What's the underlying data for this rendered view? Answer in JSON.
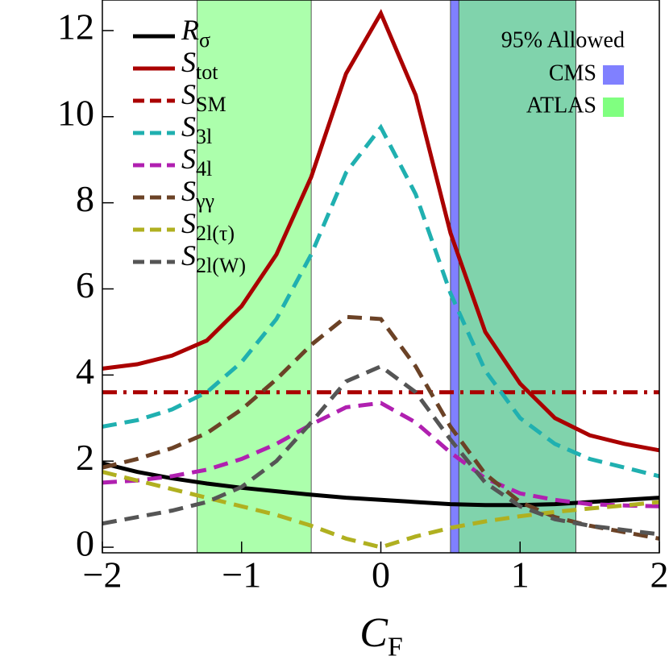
{
  "chart_data": {
    "type": "line",
    "xlabel": "CF",
    "x": [
      -2,
      -1.75,
      -1.5,
      -1.25,
      -1,
      -0.75,
      -0.5,
      -0.25,
      0,
      0.25,
      0.5,
      0.75,
      1,
      1.25,
      1.5,
      1.75,
      2
    ],
    "series": [
      {
        "name": "Rσ",
        "color": "#000000",
        "dash": "solid",
        "values": [
          1.95,
          1.75,
          1.6,
          1.48,
          1.38,
          1.3,
          1.22,
          1.15,
          1.1,
          1.05,
          1.0,
          0.98,
          0.98,
          1.0,
          1.05,
          1.1,
          1.15
        ]
      },
      {
        "name": "Stot",
        "color": "#aa0000",
        "dash": "solid",
        "values": [
          4.15,
          4.25,
          4.45,
          4.8,
          5.6,
          6.8,
          8.6,
          11.0,
          12.4,
          10.5,
          7.3,
          5.0,
          3.8,
          3.0,
          2.6,
          2.4,
          2.25
        ]
      },
      {
        "name": "SSM",
        "color": "#aa0000",
        "dash": "dashdot",
        "values": [
          3.6,
          3.6,
          3.6,
          3.6,
          3.6,
          3.6,
          3.6,
          3.6,
          3.6,
          3.6,
          3.6,
          3.6,
          3.6,
          3.6,
          3.6,
          3.6,
          3.6
        ]
      },
      {
        "name": "S3l",
        "color": "#20b0b0",
        "dash": "dashed",
        "values": [
          2.8,
          2.95,
          3.2,
          3.6,
          4.3,
          5.3,
          6.8,
          8.7,
          9.75,
          8.2,
          5.9,
          4.1,
          3.0,
          2.4,
          2.05,
          1.85,
          1.65
        ]
      },
      {
        "name": "S4l",
        "color": "#b020b0",
        "dash": "dashed",
        "values": [
          1.5,
          1.55,
          1.65,
          1.8,
          2.05,
          2.4,
          2.85,
          3.25,
          3.35,
          2.9,
          2.2,
          1.6,
          1.25,
          1.1,
          1.0,
          0.97,
          0.95
        ]
      },
      {
        "name": "Sγγ",
        "color": "#6b4226",
        "dash": "dashed",
        "values": [
          1.85,
          2.05,
          2.3,
          2.65,
          3.2,
          3.9,
          4.7,
          5.35,
          5.3,
          4.2,
          2.8,
          1.7,
          1.05,
          0.7,
          0.5,
          0.35,
          0.2
        ]
      },
      {
        "name": "S2l(τ)",
        "color": "#b0b020",
        "dash": "dashed",
        "values": [
          1.75,
          1.55,
          1.35,
          1.15,
          0.95,
          0.75,
          0.5,
          0.2,
          0.0,
          0.25,
          0.45,
          0.6,
          0.72,
          0.82,
          0.9,
          0.97,
          1.05
        ]
      },
      {
        "name": "S2l(W)",
        "color": "#555555",
        "dash": "dashed",
        "values": [
          0.55,
          0.7,
          0.85,
          1.05,
          1.4,
          2.0,
          2.9,
          3.85,
          4.2,
          3.6,
          2.5,
          1.5,
          0.95,
          0.65,
          0.5,
          0.4,
          0.3
        ]
      }
    ],
    "band_legend_title": "95% Allowed",
    "bands": [
      {
        "name": "CMS",
        "color": "#8080ff",
        "ranges": [
          [
            0.5,
            1.4
          ]
        ]
      },
      {
        "name": "ATLAS",
        "color": "#80ff80",
        "ranges": [
          [
            -1.32,
            -0.5
          ],
          [
            0.56,
            1.4
          ]
        ]
      }
    ],
    "xlim": [
      -2,
      2
    ],
    "ylim": [
      -0.13,
      12.71
    ],
    "xticks": [
      {
        "value": -2,
        "label": "−2"
      },
      {
        "value": -1,
        "label": "−1"
      },
      0,
      1,
      2
    ],
    "yticks": [
      0,
      2,
      4,
      6,
      8,
      10,
      12
    ]
  }
}
